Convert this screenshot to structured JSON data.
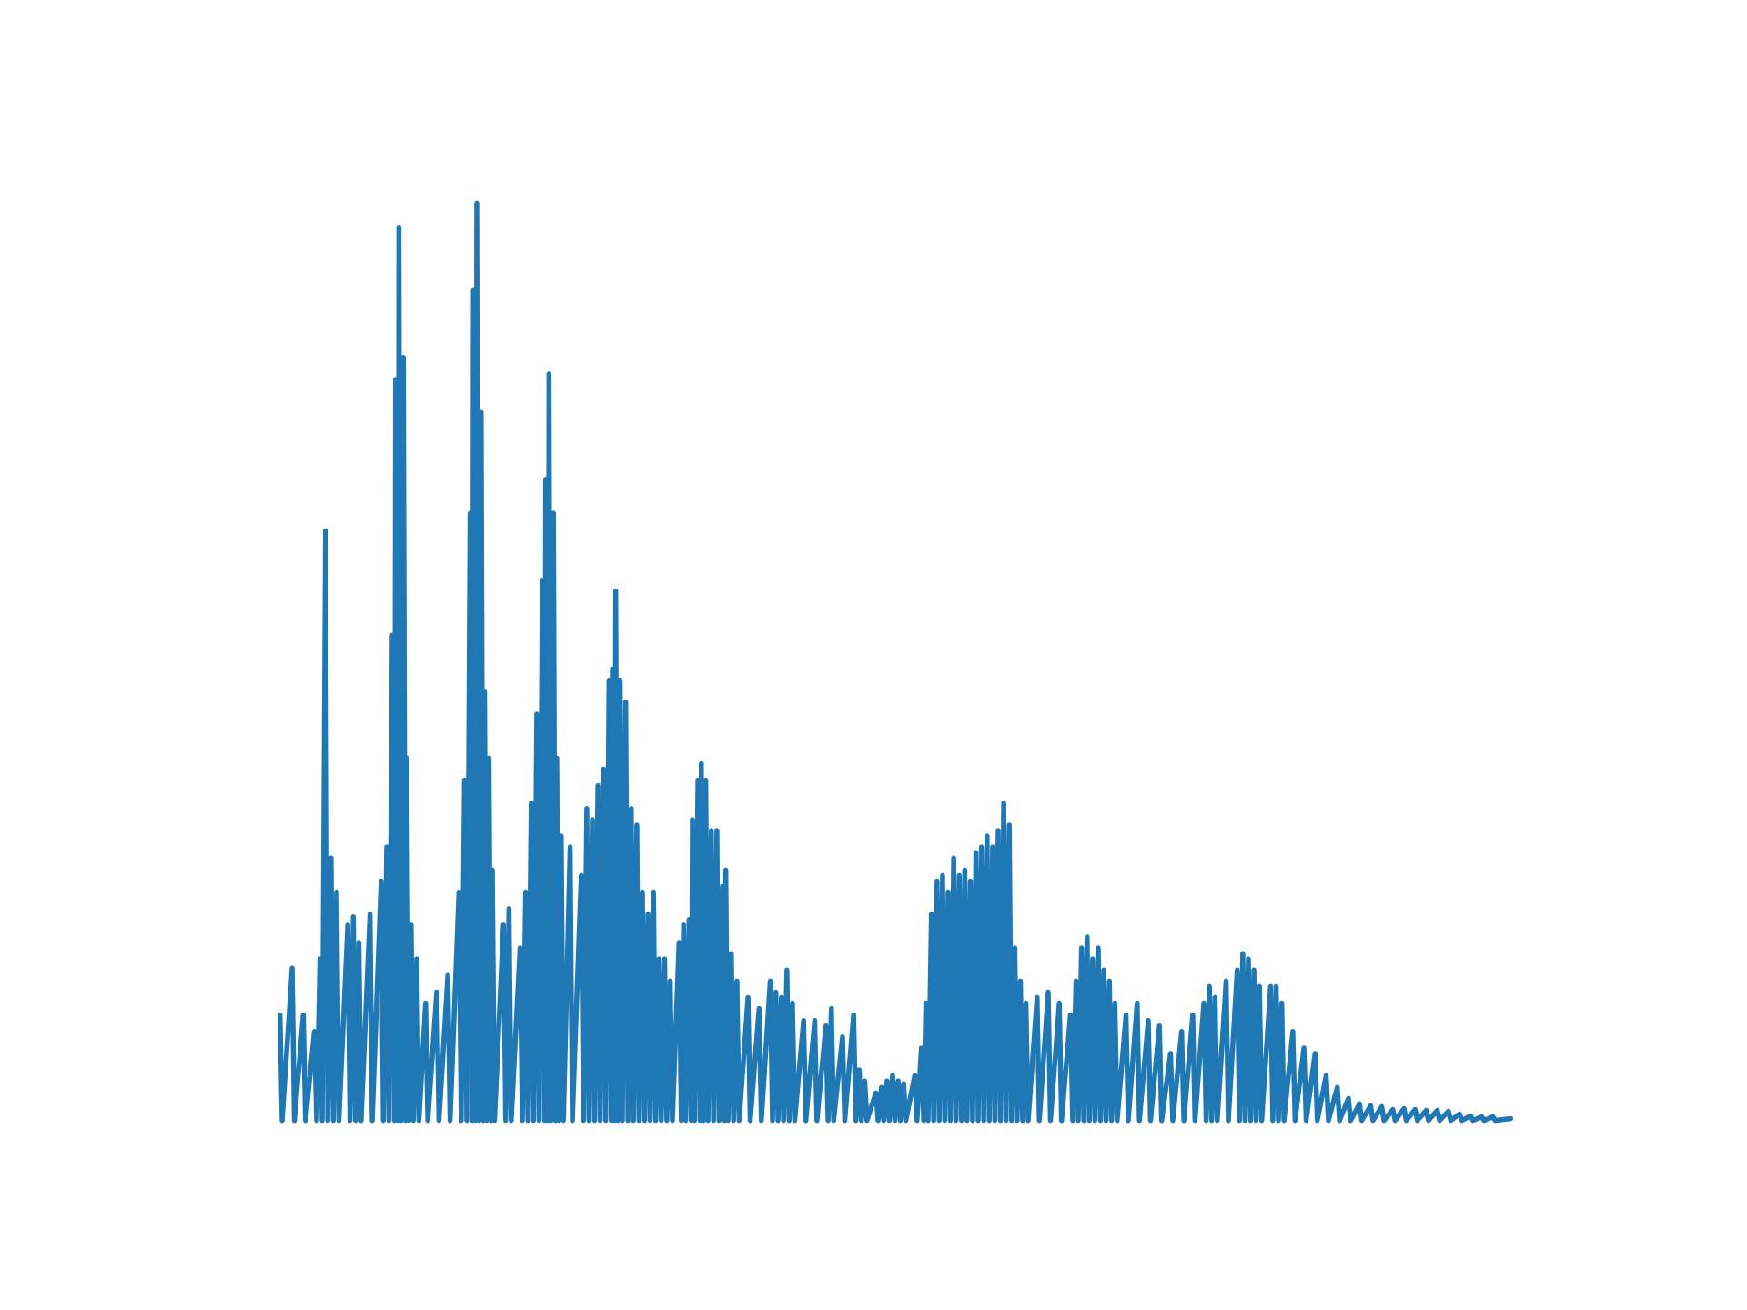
{
  "chart_data": {
    "type": "line",
    "color": "#1f77b4",
    "xlim": [
      -55.35,
      1162.35
    ],
    "ylim": [
      -5,
      105
    ],
    "x": [
      0,
      2,
      11,
      13,
      21,
      23,
      31,
      33,
      36,
      38,
      41,
      43,
      46,
      48,
      51,
      53,
      61,
      63,
      66,
      68,
      71,
      73,
      81,
      83,
      91,
      93,
      96,
      98,
      101,
      103,
      104,
      106,
      107,
      109,
      111,
      113,
      114,
      116,
      118,
      120,
      123,
      125,
      131,
      133,
      141,
      143,
      151,
      153,
      161,
      163,
      166,
      168,
      171,
      173,
      174,
      176,
      177,
      179,
      181,
      183,
      184,
      186,
      188,
      190,
      191,
      193,
      201,
      203,
      206,
      208,
      216,
      218,
      221,
      223,
      226,
      228,
      231,
      233,
      236,
      238,
      239,
      241,
      242,
      244,
      246,
      248,
      249,
      251,
      253,
      255,
      261,
      263,
      271,
      273,
      276,
      278,
      281,
      283,
      286,
      288,
      291,
      293,
      296,
      298,
      299,
      301,
      302,
      304,
      306,
      308,
      311,
      313,
      316,
      318,
      321,
      323,
      326,
      328,
      331,
      333,
      336,
      338,
      341,
      343,
      346,
      348,
      351,
      353,
      359,
      361,
      363,
      365,
      368,
      370,
      371,
      373,
      376,
      378,
      379,
      381,
      383,
      385,
      388,
      390,
      393,
      395,
      398,
      400,
      401,
      403,
      406,
      408,
      411,
      413,
      421,
      423,
      431,
      433,
      441,
      443,
      446,
      448,
      451,
      453,
      456,
      458,
      461,
      463,
      471,
      473,
      481,
      483,
      491,
      493,
      496,
      498,
      506,
      508,
      516,
      518,
      521,
      523,
      526,
      528,
      536,
      538,
      541,
      543,
      546,
      548,
      551,
      553,
      556,
      558,
      561,
      563,
      571,
      573,
      577,
      579,
      581,
      583,
      586,
      588,
      591,
      593,
      596,
      598,
      601,
      603,
      606,
      608,
      611,
      613,
      616,
      618,
      621,
      623,
      626,
      628,
      631,
      633,
      636,
      638,
      641,
      643,
      646,
      648,
      651,
      653,
      656,
      658,
      661,
      663,
      666,
      668,
      671,
      673,
      681,
      683,
      691,
      693,
      701,
      703,
      711,
      713,
      716,
      718,
      721,
      723,
      726,
      728,
      731,
      733,
      736,
      738,
      741,
      743,
      746,
      748,
      751,
      753,
      761,
      763,
      771,
      773,
      781,
      783,
      791,
      793,
      801,
      803,
      811,
      813,
      821,
      823,
      831,
      833,
      836,
      838,
      841,
      843,
      851,
      853,
      861,
      863,
      866,
      868,
      871,
      873,
      876,
      878,
      881,
      883,
      891,
      893,
      896,
      898,
      901,
      903,
      911,
      913,
      921,
      923,
      931,
      933,
      941,
      943,
      951,
      953,
      961,
      963,
      971,
      973,
      981,
      983,
      991,
      993,
      1001,
      1003,
      1011,
      1013,
      1021,
      1023,
      1031,
      1033,
      1041,
      1043,
      1051,
      1053,
      1061,
      1063,
      1071,
      1073,
      1081,
      1083,
      1091,
      1093,
      1107
    ],
    "values": [
      11.5,
      0,
      16.6,
      0,
      11.5,
      0,
      9.7,
      0,
      17.6,
      0,
      64.3,
      0,
      28.6,
      0,
      24.9,
      0,
      21.3,
      0,
      22.2,
      0,
      19.4,
      0,
      22.5,
      0,
      26.1,
      0,
      29.8,
      0,
      52.9,
      0,
      80.8,
      0,
      97.4,
      0,
      83.2,
      0,
      39.5,
      0,
      21.3,
      0,
      17.6,
      0,
      12.8,
      0,
      14.0,
      0,
      15.8,
      0,
      24.9,
      0,
      37.1,
      0,
      66.2,
      0,
      90.5,
      0,
      100,
      0,
      77.2,
      0,
      46.8,
      0,
      39.5,
      0,
      27.3,
      0,
      21.3,
      0,
      23.1,
      0,
      18.8,
      0,
      24.9,
      0,
      34.6,
      0,
      44.3,
      0,
      58.9,
      0,
      69.9,
      0,
      81.4,
      0,
      66.2,
      0,
      39.5,
      0,
      31.0,
      0,
      29.8,
      0,
      26.7,
      0,
      34.0,
      0,
      32.8,
      0,
      36.5,
      0,
      38.3,
      0,
      48.0,
      0,
      49.2,
      0,
      57.7,
      0,
      48.0,
      0,
      45.6,
      0,
      34.0,
      0,
      32.2,
      0,
      24.9,
      0,
      22.5,
      0,
      24.9,
      0,
      17.6,
      0,
      17.6,
      0,
      15.2,
      0,
      19.4,
      0,
      21.3,
      0,
      21.9,
      0,
      32.8,
      0,
      37.1,
      0,
      38.9,
      0,
      37.1,
      0,
      31.6,
      0,
      31.6,
      0,
      25.5,
      0,
      27.3,
      0,
      18.2,
      0,
      15.2,
      0,
      13.4,
      0,
      12.2,
      0,
      15.2,
      0,
      14.0,
      0,
      13.4,
      0,
      16.4,
      0,
      12.8,
      0,
      10.9,
      0,
      10.9,
      0,
      10.3,
      0,
      12.2,
      0,
      9.1,
      0,
      11.5,
      0,
      5.5,
      0,
      4.3,
      0,
      3.0,
      0,
      3.6,
      0,
      4.3,
      0,
      4.9,
      0,
      4.3,
      0,
      4.0,
      0,
      4.9,
      0,
      7.9,
      0,
      12.8,
      0,
      22.5,
      0,
      26.1,
      0,
      26.7,
      0,
      24.9,
      0,
      28.6,
      0,
      26.7,
      0,
      27.3,
      0,
      26.1,
      0,
      29.2,
      0,
      29.8,
      0,
      31.0,
      0,
      29.8,
      0,
      31.6,
      0,
      34.6,
      0,
      32.2,
      0,
      18.8,
      0,
      15.2,
      0,
      12.8,
      0,
      13.4,
      0,
      14.0,
      0,
      12.8,
      0,
      11.5,
      0,
      15.2,
      0,
      18.8,
      0,
      20.0,
      0,
      17.6,
      0,
      18.8,
      0,
      16.4,
      0,
      15.2,
      0,
      12.8,
      0,
      11.5,
      0,
      12.8,
      0,
      10.9,
      0,
      10.3,
      0,
      7.3,
      0,
      9.7,
      0,
      11.5,
      0,
      12.8,
      0,
      14.6,
      0,
      13.4,
      0,
      15.2,
      0,
      16.4,
      0,
      18.2,
      0,
      17.6,
      0,
      16.4,
      0,
      14.6,
      0,
      14.6,
      0,
      14.6,
      0,
      12.8,
      0,
      9.7,
      0,
      7.9,
      0,
      7.3,
      0,
      4.9,
      0,
      3.6,
      0,
      2.4,
      0,
      1.8,
      0,
      1.6,
      0,
      1.5,
      0,
      1.2,
      0,
      1.3,
      0,
      1.2,
      0,
      1.1,
      0,
      1.1,
      0,
      1.0,
      0,
      0.7,
      0,
      0.5,
      0,
      0.4,
      0,
      0.4,
      0,
      0.2
    ]
  }
}
